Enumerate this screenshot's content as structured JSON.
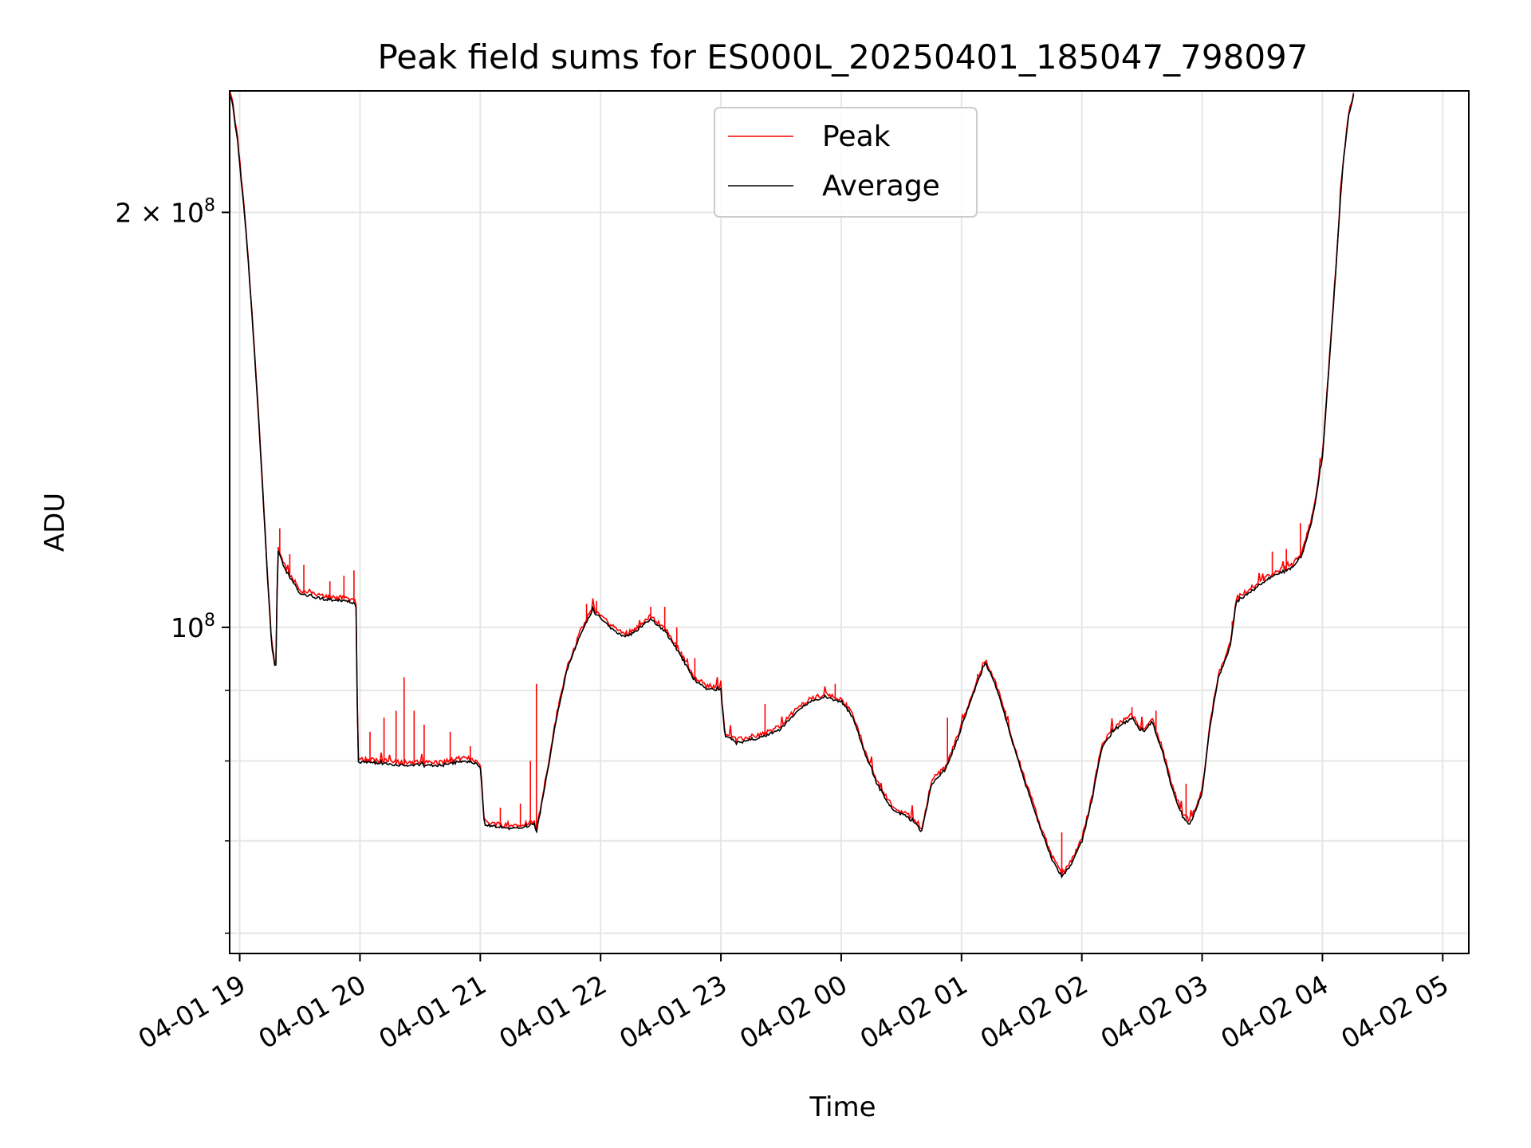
{
  "chart_data": {
    "type": "line",
    "title": "Peak field sums for ES000L_20250401_185047_798097",
    "xlabel": "Time",
    "ylabel": "ADU",
    "y_scale": "log",
    "ylim": [
      58000000,
      245000000
    ],
    "xlim": [
      "2025-04-01 18:55",
      "2025-04-02 05:13"
    ],
    "x_ticks": [
      {
        "value": "2025-04-01 19:00",
        "label": "04-01 19"
      },
      {
        "value": "2025-04-01 20:00",
        "label": "04-01 20"
      },
      {
        "value": "2025-04-01 21:00",
        "label": "04-01 21"
      },
      {
        "value": "2025-04-01 22:00",
        "label": "04-01 22"
      },
      {
        "value": "2025-04-01 23:00",
        "label": "04-01 23"
      },
      {
        "value": "2025-04-02 00:00",
        "label": "04-02 00"
      },
      {
        "value": "2025-04-02 01:00",
        "label": "04-02 01"
      },
      {
        "value": "2025-04-02 02:00",
        "label": "04-02 02"
      },
      {
        "value": "2025-04-02 03:00",
        "label": "04-02 03"
      },
      {
        "value": "2025-04-02 04:00",
        "label": "04-02 04"
      },
      {
        "value": "2025-04-02 05:00",
        "label": "04-02 05"
      }
    ],
    "y_ticks": [
      {
        "value": 200000000,
        "base": "2 × 10",
        "exp": "8"
      },
      {
        "value": 100000000,
        "base": "10",
        "exp": "8"
      }
    ],
    "y_minor_ticks": [
      60000000,
      70000000,
      80000000,
      90000000
    ],
    "grid": true,
    "legend_position": "top-center",
    "series": [
      {
        "name": "Average",
        "color": "#000000",
        "points": [
          [
            "2025-04-01 18:53",
            245000000
          ],
          [
            "2025-04-01 18:56",
            242000000
          ],
          [
            "2025-04-01 18:59",
            225000000
          ],
          [
            "2025-04-01 19:03",
            195000000
          ],
          [
            "2025-04-01 19:06",
            170000000
          ],
          [
            "2025-04-01 19:09",
            145000000
          ],
          [
            "2025-04-01 19:12",
            122000000
          ],
          [
            "2025-04-01 19:14",
            108000000
          ],
          [
            "2025-04-01 19:16",
            97000000
          ],
          [
            "2025-04-01 19:18",
            93000000
          ],
          [
            "2025-04-01 19:19",
            114000000
          ],
          [
            "2025-04-01 19:23",
            110000000
          ],
          [
            "2025-04-01 19:30",
            106000000
          ],
          [
            "2025-04-01 19:40",
            105000000
          ],
          [
            "2025-04-01 19:55",
            104500000
          ],
          [
            "2025-04-01 19:58",
            104000000
          ],
          [
            "2025-04-01 19:59",
            80000000
          ],
          [
            "2025-04-01 20:20",
            79500000
          ],
          [
            "2025-04-01 20:40",
            79500000
          ],
          [
            "2025-04-01 20:50",
            80000000
          ],
          [
            "2025-04-01 20:55",
            80000000
          ],
          [
            "2025-04-01 21:00",
            79500000
          ],
          [
            "2025-04-01 21:02",
            72000000
          ],
          [
            "2025-04-01 21:15",
            71500000
          ],
          [
            "2025-04-01 21:27",
            72000000
          ],
          [
            "2025-04-01 21:28",
            71000000
          ],
          [
            "2025-04-01 21:33",
            78000000
          ],
          [
            "2025-04-01 21:38",
            86000000
          ],
          [
            "2025-04-01 21:43",
            93000000
          ],
          [
            "2025-04-01 21:50",
            99000000
          ],
          [
            "2025-04-01 21:56",
            103000000
          ],
          [
            "2025-04-01 22:05",
            100000000
          ],
          [
            "2025-04-01 22:12",
            98500000
          ],
          [
            "2025-04-01 22:18",
            99500000
          ],
          [
            "2025-04-01 22:25",
            101500000
          ],
          [
            "2025-04-01 22:32",
            99500000
          ],
          [
            "2025-04-01 22:40",
            95500000
          ],
          [
            "2025-04-01 22:46",
            92000000
          ],
          [
            "2025-04-01 22:52",
            90500000
          ],
          [
            "2025-04-01 23:00",
            90000000
          ],
          [
            "2025-04-01 23:02",
            83500000
          ],
          [
            "2025-04-01 23:08",
            82500000
          ],
          [
            "2025-04-01 23:15",
            83000000
          ],
          [
            "2025-04-01 23:22",
            83500000
          ],
          [
            "2025-04-01 23:30",
            84500000
          ],
          [
            "2025-04-01 23:38",
            87000000
          ],
          [
            "2025-04-01 23:45",
            88500000
          ],
          [
            "2025-04-01 23:52",
            89000000
          ],
          [
            "2025-04-02 00:00",
            88500000
          ],
          [
            "2025-04-02 00:06",
            86000000
          ],
          [
            "2025-04-02 00:12",
            81000000
          ],
          [
            "2025-04-02 00:18",
            77000000
          ],
          [
            "2025-04-02 00:25",
            74000000
          ],
          [
            "2025-04-02 00:32",
            73000000
          ],
          [
            "2025-04-02 00:38",
            72000000
          ],
          [
            "2025-04-02 00:40",
            71000000
          ],
          [
            "2025-04-02 00:45",
            77000000
          ],
          [
            "2025-04-02 00:52",
            79000000
          ],
          [
            "2025-04-02 00:58",
            83000000
          ],
          [
            "2025-04-02 01:05",
            89000000
          ],
          [
            "2025-04-02 01:10",
            93000000
          ],
          [
            "2025-04-02 01:12",
            94500000
          ],
          [
            "2025-04-02 01:18",
            90000000
          ],
          [
            "2025-04-02 01:25",
            83000000
          ],
          [
            "2025-04-02 01:32",
            77000000
          ],
          [
            "2025-04-02 01:38",
            72500000
          ],
          [
            "2025-04-02 01:45",
            68000000
          ],
          [
            "2025-04-02 01:50",
            66000000
          ],
          [
            "2025-04-02 01:55",
            67500000
          ],
          [
            "2025-04-02 02:00",
            70000000
          ],
          [
            "2025-04-02 02:05",
            75000000
          ],
          [
            "2025-04-02 02:10",
            82000000
          ],
          [
            "2025-04-02 02:17",
            84500000
          ],
          [
            "2025-04-02 02:25",
            86000000
          ],
          [
            "2025-04-02 02:30",
            84000000
          ],
          [
            "2025-04-02 02:35",
            85500000
          ],
          [
            "2025-04-02 02:40",
            81500000
          ],
          [
            "2025-04-02 02:45",
            76500000
          ],
          [
            "2025-04-02 02:50",
            73000000
          ],
          [
            "2025-04-02 02:54",
            72000000
          ],
          [
            "2025-04-02 03:00",
            76000000
          ],
          [
            "2025-04-02 03:04",
            85000000
          ],
          [
            "2025-04-02 03:08",
            92000000
          ],
          [
            "2025-04-02 03:14",
            97000000
          ],
          [
            "2025-04-02 03:17",
            104500000
          ],
          [
            "2025-04-02 03:25",
            106500000
          ],
          [
            "2025-04-02 03:35",
            109000000
          ],
          [
            "2025-04-02 03:45",
            110500000
          ],
          [
            "2025-04-02 03:50",
            113000000
          ],
          [
            "2025-04-02 03:55",
            120000000
          ],
          [
            "2025-04-02 04:00",
            133000000
          ],
          [
            "2025-04-02 04:04",
            160000000
          ],
          [
            "2025-04-02 04:07",
            185000000
          ],
          [
            "2025-04-02 04:10",
            215000000
          ],
          [
            "2025-04-02 04:13",
            235000000
          ],
          [
            "2025-04-02 04:16",
            245000000
          ]
        ]
      },
      {
        "name": "Peak",
        "color": "#ff0000",
        "spikes": [
          [
            "2025-04-01 19:20",
            118000000
          ],
          [
            "2025-04-01 19:25",
            113000000
          ],
          [
            "2025-04-01 19:32",
            111000000
          ],
          [
            "2025-04-01 19:45",
            108000000
          ],
          [
            "2025-04-01 19:52",
            109000000
          ],
          [
            "2025-04-01 19:57",
            110000000
          ],
          [
            "2025-04-01 20:05",
            84000000
          ],
          [
            "2025-04-01 20:12",
            86000000
          ],
          [
            "2025-04-01 20:18",
            87000000
          ],
          [
            "2025-04-01 20:22",
            92000000
          ],
          [
            "2025-04-01 20:27",
            87000000
          ],
          [
            "2025-04-01 20:32",
            85000000
          ],
          [
            "2025-04-01 20:45",
            84000000
          ],
          [
            "2025-04-01 20:55",
            82000000
          ],
          [
            "2025-04-01 21:10",
            74000000
          ],
          [
            "2025-04-01 21:20",
            74500000
          ],
          [
            "2025-04-01 21:25",
            80000000
          ],
          [
            "2025-04-01 21:28",
            91000000
          ],
          [
            "2025-04-01 21:53",
            104000000
          ],
          [
            "2025-04-01 21:58",
            104500000
          ],
          [
            "2025-04-01 22:25",
            103500000
          ],
          [
            "2025-04-01 22:32",
            103500000
          ],
          [
            "2025-04-01 22:38",
            100000000
          ],
          [
            "2025-04-01 22:47",
            95000000
          ],
          [
            "2025-04-01 23:22",
            88000000
          ],
          [
            "2025-04-01 23:57",
            91000000
          ],
          [
            "2025-04-02 00:53",
            86000000
          ],
          [
            "2025-04-02 01:08",
            92500000
          ],
          [
            "2025-04-02 01:22",
            87000000
          ],
          [
            "2025-04-02 01:50",
            71000000
          ],
          [
            "2025-04-02 02:25",
            87500000
          ],
          [
            "2025-04-02 02:37",
            87000000
          ],
          [
            "2025-04-02 02:52",
            77000000
          ],
          [
            "2025-04-02 03:15",
            101000000
          ],
          [
            "2025-04-02 03:35",
            113500000
          ],
          [
            "2025-04-02 03:42",
            114000000
          ],
          [
            "2025-04-02 03:49",
            119000000
          ]
        ]
      }
    ]
  }
}
